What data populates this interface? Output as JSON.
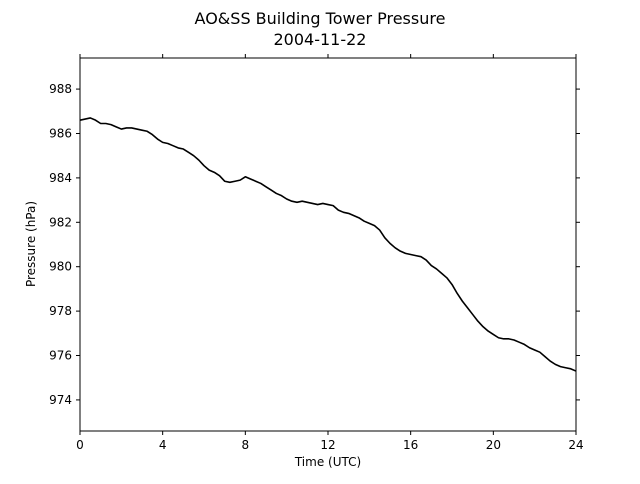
{
  "chart_data": {
    "type": "line",
    "title": "AO&SS Building Tower Pressure",
    "subtitle": "2004-11-22",
    "xlabel": "Time (UTC)",
    "ylabel": "Pressure (hPa)",
    "xlim": [
      0,
      24
    ],
    "ylim": [
      972.6,
      989.4
    ],
    "xticks": [
      0,
      4,
      8,
      12,
      16,
      20,
      24
    ],
    "yticks": [
      974,
      976,
      978,
      980,
      982,
      984,
      986,
      988
    ],
    "grid": false,
    "legend": "none",
    "line_color": "#000000",
    "series": [
      {
        "x": [
          0.0,
          0.25,
          0.5,
          0.75,
          1.0,
          1.25,
          1.5,
          1.75,
          2.0,
          2.25,
          2.5,
          2.75,
          3.0,
          3.25,
          3.5,
          3.75,
          4.0,
          4.25,
          4.5,
          4.75,
          5.0,
          5.25,
          5.5,
          5.75,
          6.0,
          6.25,
          6.5,
          6.75,
          7.0,
          7.25,
          7.5,
          7.75,
          8.0,
          8.25,
          8.5,
          8.75,
          9.0,
          9.25,
          9.5,
          9.75,
          10.0,
          10.25,
          10.5,
          10.75,
          11.0,
          11.25,
          11.5,
          11.75,
          12.0,
          12.25,
          12.5,
          12.75,
          13.0,
          13.25,
          13.5,
          13.75,
          14.0,
          14.25,
          14.5,
          14.75,
          15.0,
          15.25,
          15.5,
          15.75,
          16.0,
          16.25,
          16.5,
          16.75,
          17.0,
          17.25,
          17.5,
          17.75,
          18.0,
          18.25,
          18.5,
          18.75,
          19.0,
          19.25,
          19.5,
          19.75,
          20.0,
          20.25,
          20.5,
          20.75,
          21.0,
          21.25,
          21.5,
          21.75,
          22.0,
          22.25,
          22.5,
          22.75,
          23.0,
          23.25,
          23.5,
          23.75,
          24.0
        ],
        "y": [
          986.6,
          986.65,
          986.7,
          986.6,
          986.45,
          986.45,
          986.4,
          986.3,
          986.2,
          986.25,
          986.25,
          986.2,
          986.15,
          986.1,
          985.95,
          985.75,
          985.6,
          985.55,
          985.45,
          985.35,
          985.3,
          985.15,
          985.0,
          984.8,
          984.55,
          984.35,
          984.25,
          984.1,
          983.85,
          983.8,
          983.85,
          983.9,
          984.05,
          983.95,
          983.85,
          983.75,
          983.6,
          983.45,
          983.3,
          983.2,
          983.05,
          982.95,
          982.9,
          982.95,
          982.9,
          982.85,
          982.8,
          982.85,
          982.8,
          982.75,
          982.55,
          982.45,
          982.4,
          982.3,
          982.2,
          982.05,
          981.95,
          981.85,
          981.65,
          981.3,
          981.05,
          980.85,
          980.7,
          980.6,
          980.55,
          980.5,
          980.45,
          980.3,
          980.05,
          979.9,
          979.7,
          979.5,
          979.2,
          978.8,
          978.45,
          978.15,
          977.85,
          977.55,
          977.3,
          977.1,
          976.95,
          976.8,
          976.75,
          976.75,
          976.7,
          976.6,
          976.5,
          976.35,
          976.25,
          976.15,
          975.95,
          975.75,
          975.6,
          975.5,
          975.45,
          975.4,
          975.3
        ]
      }
    ]
  }
}
